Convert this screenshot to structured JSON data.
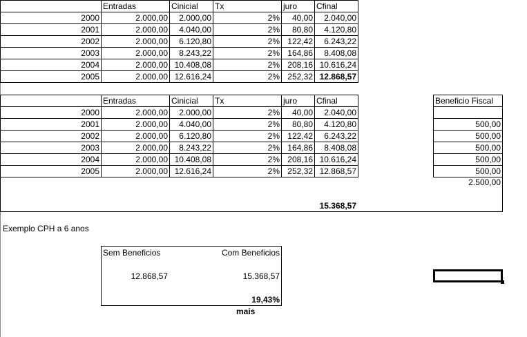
{
  "headers": [
    "",
    "Entradas",
    "Cinicial",
    "Tx",
    "juro",
    "Cfinal"
  ],
  "table1": [
    [
      "2000",
      "2.000,00",
      "2.000,00",
      "2%",
      "40,00",
      "2.040,00"
    ],
    [
      "2001",
      "2.000,00",
      "4.040,00",
      "2%",
      "80,80",
      "4.120,80"
    ],
    [
      "2002",
      "2.000,00",
      "6.120,80",
      "2%",
      "122,42",
      "6.243,22"
    ],
    [
      "2003",
      "2.000,00",
      "8.243,22",
      "2%",
      "164,86",
      "8.408,08"
    ],
    [
      "2004",
      "2.000,00",
      "10.408,08",
      "2%",
      "208,16",
      "10.616,24"
    ],
    [
      "2005",
      "2.000,00",
      "12.616,24",
      "2%",
      "252,32",
      "12.868,57"
    ]
  ],
  "table2": [
    [
      "2000",
      "2.000,00",
      "2.000,00",
      "2%",
      "40,00",
      "2.040,00",
      ""
    ],
    [
      "2001",
      "2.000,00",
      "4.040,00",
      "2%",
      "80,80",
      "4.120,80",
      "500,00"
    ],
    [
      "2002",
      "2.000,00",
      "6.120,80",
      "2%",
      "122,42",
      "6.243,22",
      "500,00"
    ],
    [
      "2003",
      "2.000,00",
      "8.243,22",
      "2%",
      "164,86",
      "8.408,08",
      "500,00"
    ],
    [
      "2004",
      "2.000,00",
      "10.408,08",
      "2%",
      "208,16",
      "10.616,24",
      "500,00"
    ],
    [
      "2005",
      "2.000,00",
      "12.616,24",
      "2%",
      "252,32",
      "12.868,57",
      "500,00"
    ]
  ],
  "beneficio_header": "Beneficio Fiscal",
  "beneficio_total": "2.500,00",
  "grand_total": "15.368,57",
  "example_title": "Exemplo CPH a 6 anos",
  "compare": {
    "sem_label": "Sem Beneficios",
    "com_label": "Com Beneficios",
    "sem_value": "12.868,57",
    "com_value": "15.368,57",
    "pct": "19,43%",
    "mais": "mais"
  }
}
